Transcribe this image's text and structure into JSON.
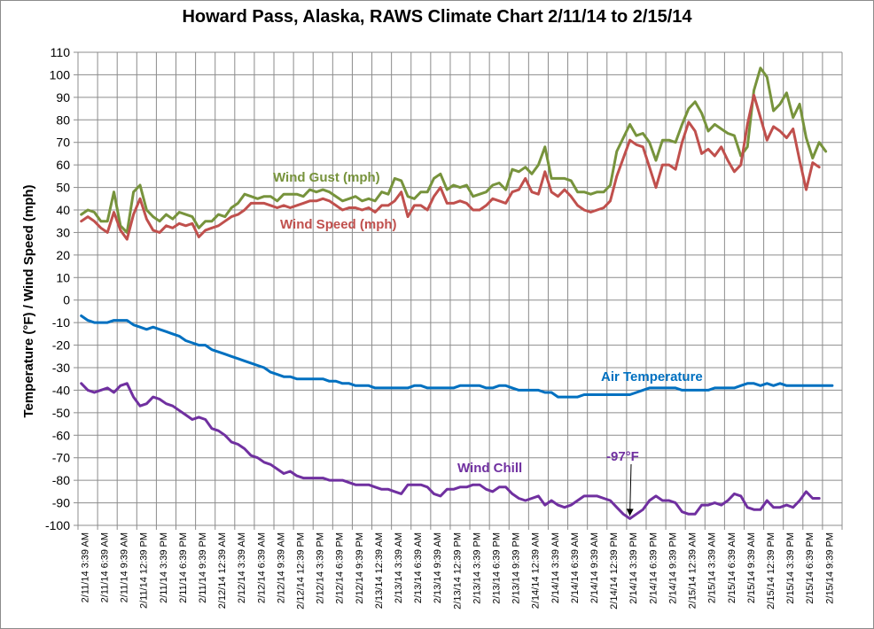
{
  "chart_data": {
    "type": "line",
    "title": "Howard Pass, Alaska, RAWS Climate Chart 2/11/14 to 2/15/14",
    "xlabel": "",
    "ylabel": "Temperature (°F) / Wind Speed (mph)",
    "ylim": [
      -100,
      110
    ],
    "ytick_step": 10,
    "grid": true,
    "x_tick_labels": [
      "2/11/14 3:39 AM",
      "2/11/14 6:39 AM",
      "2/11/14 9:39 AM",
      "2/11/14 12:39 PM",
      "2/11/14 3:39 PM",
      "2/11/14 6:39 PM",
      "2/11/14 9:39 PM",
      "2/12/14 12:39 AM",
      "2/12/14 3:39 AM",
      "2/12/14 6:39 AM",
      "2/12/14 9:39 AM",
      "2/12/14 12:39 PM",
      "2/12/14 3:39 PM",
      "2/12/14 6:39 PM",
      "2/12/14 9:39 PM",
      "2/13/14 12:39 AM",
      "2/13/14 3:39 AM",
      "2/13/14 6:39 AM",
      "2/13/14 9:39 AM",
      "2/13/14 12:39 PM",
      "2/13/14 3:39 PM",
      "2/13/14 6:39 PM",
      "2/13/14 9:39 PM",
      "2/14/14 12:39 AM",
      "2/14/14 3:39 AM",
      "2/14/14 6:39 AM",
      "2/14/14 9:39 AM",
      "2/14/14 12:39 PM",
      "2/14/14 3:39 PM",
      "2/14/14 6:39 PM",
      "2/14/14 9:39 PM",
      "2/15/14 12:39 AM",
      "2/15/14 3:39 AM",
      "2/15/14 6:39 AM",
      "2/15/14 9:39 AM",
      "2/15/14 12:39 PM",
      "2/15/14 3:39 PM",
      "2/15/14 6:39 PM",
      "2/15/14 9:39 PM"
    ],
    "points_per_tick": 3,
    "series": [
      {
        "name": "Wind Gust (mph)",
        "label": "Wind Gust (mph)",
        "color": "#77933c",
        "values": [
          38,
          40,
          39,
          35,
          35,
          48,
          33,
          30,
          48,
          51,
          40,
          37,
          35,
          38,
          36,
          39,
          38,
          37,
          32,
          35,
          35,
          38,
          37,
          41,
          43,
          47,
          46,
          45,
          46,
          46,
          44,
          47,
          47,
          47,
          46,
          49,
          48,
          49,
          48,
          46,
          44,
          45,
          46,
          44,
          45,
          44,
          48,
          47,
          54,
          53,
          46,
          45,
          48,
          48,
          54,
          56,
          49,
          51,
          50,
          51,
          46,
          47,
          48,
          51,
          52,
          49,
          58,
          57,
          59,
          56,
          60,
          68,
          54,
          54,
          54,
          53,
          48,
          48,
          47,
          48,
          48,
          51,
          66,
          72,
          78,
          73,
          74,
          70,
          62,
          71,
          71,
          70,
          78,
          85,
          88,
          83,
          75,
          78,
          76,
          74,
          73,
          64,
          68,
          93,
          103,
          99,
          84,
          87,
          92,
          81,
          87,
          72,
          63,
          70,
          66
        ]
      },
      {
        "name": "Wind Speed (mph)",
        "label": "Wind Speed (mph)",
        "color": "#c0504d",
        "values": [
          35,
          37,
          35,
          32,
          30,
          39,
          31,
          27,
          38,
          45,
          36,
          31,
          30,
          33,
          32,
          34,
          33,
          34,
          28,
          31,
          32,
          33,
          35,
          37,
          38,
          40,
          43,
          43,
          43,
          42,
          41,
          42,
          41,
          42,
          43,
          44,
          44,
          45,
          44,
          42,
          40,
          41,
          41,
          40,
          41,
          39,
          42,
          42,
          44,
          48,
          37,
          42,
          42,
          40,
          46,
          50,
          43,
          43,
          44,
          43,
          40,
          40,
          42,
          45,
          44,
          43,
          48,
          49,
          54,
          48,
          47,
          57,
          48,
          46,
          49,
          46,
          42,
          40,
          39,
          40,
          41,
          44,
          55,
          63,
          71,
          69,
          68,
          59,
          50,
          60,
          60,
          58,
          70,
          79,
          75,
          65,
          67,
          64,
          68,
          62,
          57,
          60,
          78,
          91,
          81,
          71,
          77,
          75,
          72,
          76,
          62,
          49,
          61,
          59
        ]
      },
      {
        "name": "Air Temperature",
        "label": "Air Temperature",
        "color": "#0070c0",
        "values": [
          -7,
          -9,
          -10,
          -10,
          -10,
          -9,
          -9,
          -9,
          -11,
          -12,
          -13,
          -12,
          -13,
          -14,
          -15,
          -16,
          -18,
          -19,
          -20,
          -20,
          -22,
          -23,
          -24,
          -25,
          -26,
          -27,
          -28,
          -29,
          -30,
          -32,
          -33,
          -34,
          -34,
          -35,
          -35,
          -35,
          -35,
          -35,
          -36,
          -36,
          -37,
          -37,
          -38,
          -38,
          -38,
          -39,
          -39,
          -39,
          -39,
          -39,
          -39,
          -38,
          -38,
          -39,
          -39,
          -39,
          -39,
          -39,
          -38,
          -38,
          -38,
          -38,
          -39,
          -39,
          -38,
          -38,
          -39,
          -40,
          -40,
          -40,
          -40,
          -41,
          -41,
          -43,
          -43,
          -43,
          -43,
          -42,
          -42,
          -42,
          -42,
          -42,
          -42,
          -42,
          -42,
          -41,
          -40,
          -39,
          -39,
          -39,
          -39,
          -39,
          -40,
          -40,
          -40,
          -40,
          -40,
          -39,
          -39,
          -39,
          -39,
          -38,
          -37,
          -37,
          -38,
          -37,
          -38,
          -37,
          -38,
          -38,
          -38,
          -38,
          -38,
          -38,
          -38,
          -38
        ]
      },
      {
        "name": "Wind Chill",
        "label": "Wind Chill",
        "color": "#7030a0",
        "values": [
          -37,
          -40,
          -41,
          -40,
          -39,
          -41,
          -38,
          -37,
          -43,
          -47,
          -46,
          -43,
          -44,
          -46,
          -47,
          -49,
          -51,
          -53,
          -52,
          -53,
          -57,
          -58,
          -60,
          -63,
          -64,
          -66,
          -69,
          -70,
          -72,
          -73,
          -75,
          -77,
          -76,
          -78,
          -79,
          -79,
          -79,
          -79,
          -80,
          -80,
          -80,
          -81,
          -82,
          -82,
          -82,
          -83,
          -84,
          -84,
          -85,
          -86,
          -82,
          -82,
          -82,
          -83,
          -86,
          -87,
          -84,
          -84,
          -83,
          -83,
          -82,
          -82,
          -84,
          -85,
          -83,
          -83,
          -86,
          -88,
          -89,
          -88,
          -87,
          -91,
          -89,
          -91,
          -92,
          -91,
          -89,
          -87,
          -87,
          -87,
          -88,
          -89,
          -92,
          -95,
          -97,
          -95,
          -93,
          -89,
          -87,
          -89,
          -89,
          -90,
          -94,
          -95,
          -95,
          -91,
          -91,
          -90,
          -91,
          -89,
          -86,
          -87,
          -92,
          -93,
          -93,
          -89,
          -92,
          -92,
          -91,
          -92,
          -89,
          -85,
          -88,
          -88
        ]
      }
    ],
    "annotations": [
      {
        "text": "-97°F",
        "color": "#7030a0",
        "arrow_to_point": {
          "series": "Wind Chill",
          "index": 84
        }
      }
    ]
  }
}
